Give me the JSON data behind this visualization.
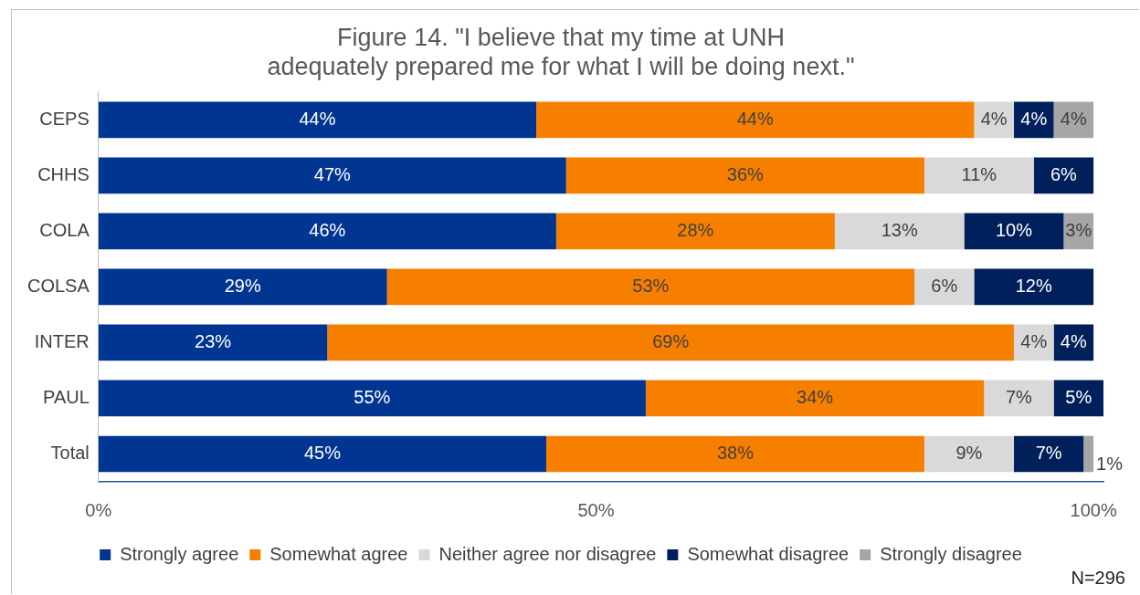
{
  "chart_data": {
    "type": "bar",
    "orientation": "horizontal",
    "stacked": true,
    "title": "Figure 14. \"I believe that my time at UNH\nadequately prepared me for what I will be doing next.\"",
    "categories": [
      "CEPS",
      "CHHS",
      "COLA",
      "COLSA",
      "INTER",
      "PAUL",
      "Total"
    ],
    "series": [
      {
        "name": "Strongly agree",
        "color": "#003591",
        "values": [
          44,
          47,
          46,
          29,
          23,
          55,
          45
        ],
        "value_labels": [
          "44%",
          "47%",
          "46%",
          "29%",
          "23%",
          "55%",
          "45%"
        ]
      },
      {
        "name": "Somewhat agree",
        "color": "#f77f00",
        "values": [
          44,
          36,
          28,
          53,
          69,
          34,
          38
        ],
        "value_labels": [
          "44%",
          "36%",
          "28%",
          "53%",
          "69%",
          "34%",
          "38%"
        ]
      },
      {
        "name": "Neither agree nor disagree",
        "color": "#d9d9d9",
        "values": [
          4,
          11,
          13,
          6,
          4,
          7,
          9
        ],
        "value_labels": [
          "4%",
          "11%",
          "13%",
          "6%",
          "4%",
          "7%",
          "9%"
        ]
      },
      {
        "name": "Somewhat disagree",
        "color": "#00205b",
        "values": [
          4,
          6,
          10,
          12,
          4,
          5,
          7
        ],
        "value_labels": [
          "4%",
          "6%",
          "10%",
          "12%",
          "4%",
          "5%",
          "7%"
        ]
      },
      {
        "name": "Strongly disagree",
        "color": "#a6a6a6",
        "values": [
          4,
          null,
          3,
          null,
          null,
          null,
          1
        ],
        "value_labels": [
          "4%",
          null,
          "3%",
          null,
          null,
          null,
          "1%"
        ]
      }
    ],
    "xlim": [
      0,
      101
    ],
    "xticks": [
      {
        "value": 0,
        "label": "0%"
      },
      {
        "value": 50,
        "label": "50%"
      },
      {
        "value": 100,
        "label": "100%"
      }
    ],
    "grid": false,
    "legend": "bottom",
    "annotations": [
      "N=296"
    ]
  }
}
